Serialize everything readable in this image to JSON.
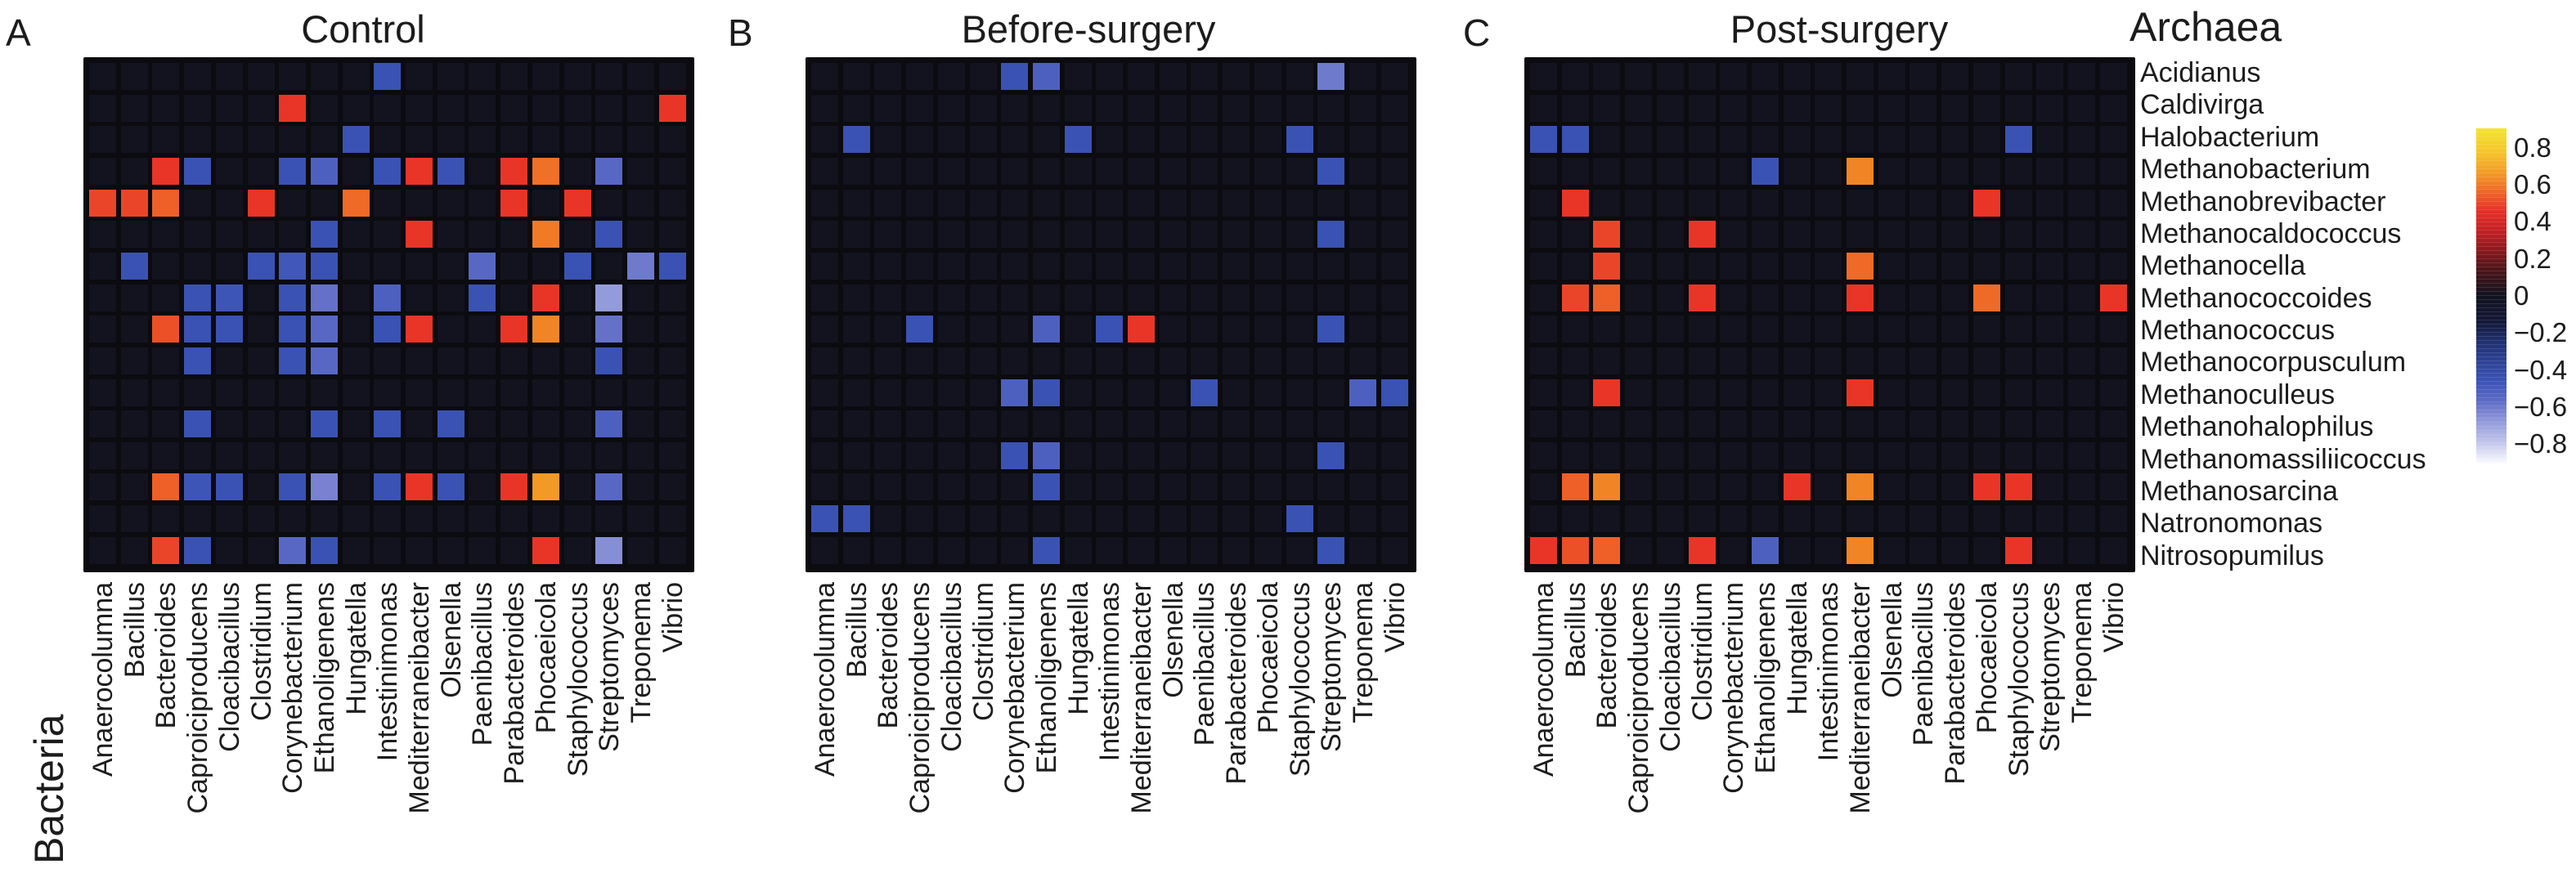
{
  "figure": {
    "panel_letters": [
      "A",
      "B",
      "C"
    ],
    "axis_label_right": "Archaea",
    "axis_label_bottom": "Bacteria"
  },
  "colorbar": {
    "tick_labels": [
      "0.8",
      "0.6",
      "0.4",
      "0.2",
      "0",
      "−0.2",
      "−0.4",
      "−0.6",
      "−0.8"
    ],
    "tick_values": [
      0.8,
      0.6,
      0.4,
      0.2,
      0,
      -0.2,
      -0.4,
      -0.6,
      -0.8
    ],
    "vmax": 0.905,
    "vmin": -0.905,
    "stops": [
      {
        "v": 0.905,
        "c": "#f2e434"
      },
      {
        "v": 0.78,
        "c": "#f6c62b"
      },
      {
        "v": 0.66,
        "c": "#f39a26"
      },
      {
        "v": 0.56,
        "c": "#ef6527"
      },
      {
        "v": 0.46,
        "c": "#e73028"
      },
      {
        "v": 0.35,
        "c": "#c32125"
      },
      {
        "v": 0.25,
        "c": "#8c1a1e"
      },
      {
        "v": 0.14,
        "c": "#4b151a"
      },
      {
        "v": 0.0,
        "c": "#12131f"
      },
      {
        "v": -0.14,
        "c": "#141938"
      },
      {
        "v": -0.25,
        "c": "#203070"
      },
      {
        "v": -0.36,
        "c": "#2f4497"
      },
      {
        "v": -0.46,
        "c": "#3b53b6"
      },
      {
        "v": -0.56,
        "c": "#5b69c5"
      },
      {
        "v": -0.66,
        "c": "#8b93d7"
      },
      {
        "v": -0.78,
        "c": "#bdc1e9"
      },
      {
        "v": -0.905,
        "c": "#fbfbfe"
      }
    ]
  },
  "chart_data": [
    {
      "type": "heatmap",
      "panel": "A",
      "title": "Control",
      "x_categories": [
        "Anaerocolumna",
        "Bacillus",
        "Bacteroides",
        "Caproiciproducens",
        "Cloacibacillus",
        "Clostridium",
        "Corynebacterium",
        "Ethanoligenens",
        "Hungatella",
        "Intestinimonas",
        "Mediterraneibacter",
        "Olsenella",
        "Paenibacillus",
        "Parabacteroides",
        "Phocaeicola",
        "Staphylococcus",
        "Streptomyces",
        "Treponema",
        "Vibrio"
      ],
      "y_categories": [
        "Acidianus",
        "Caldivirga",
        "Halobacterium",
        "Methanobacterium",
        "Methanobrevibacter",
        "Methanocaldococcus",
        "Methanocella",
        "Methanococcoides",
        "Methanococcus",
        "Methanocorpusculum",
        "Methanoculleus",
        "Methanohalophilus",
        "Methanomassiliicoccus",
        "Methanosarcina",
        "Natronomonas",
        "Nitrosopumilus"
      ],
      "value_range": [
        -0.9,
        0.9
      ],
      "default_value": 0,
      "cells": [
        [
          1,
          10,
          -0.45
        ],
        [
          2,
          7,
          0.47
        ],
        [
          2,
          19,
          0.47
        ],
        [
          3,
          9,
          -0.45
        ],
        [
          4,
          3,
          0.47
        ],
        [
          4,
          4,
          -0.45
        ],
        [
          4,
          7,
          -0.45
        ],
        [
          4,
          8,
          -0.52
        ],
        [
          4,
          10,
          -0.45
        ],
        [
          4,
          11,
          0.47
        ],
        [
          4,
          12,
          -0.45
        ],
        [
          4,
          14,
          0.47
        ],
        [
          4,
          15,
          0.58
        ],
        [
          4,
          17,
          -0.55
        ],
        [
          5,
          1,
          0.5
        ],
        [
          5,
          2,
          0.5
        ],
        [
          5,
          3,
          0.55
        ],
        [
          5,
          6,
          0.47
        ],
        [
          5,
          9,
          0.57
        ],
        [
          5,
          14,
          0.47
        ],
        [
          5,
          16,
          0.47
        ],
        [
          6,
          8,
          -0.45
        ],
        [
          6,
          11,
          0.47
        ],
        [
          6,
          15,
          0.6
        ],
        [
          6,
          17,
          -0.45
        ],
        [
          7,
          2,
          -0.45
        ],
        [
          7,
          6,
          -0.45
        ],
        [
          7,
          7,
          -0.48
        ],
        [
          7,
          8,
          -0.45
        ],
        [
          7,
          13,
          -0.55
        ],
        [
          7,
          16,
          -0.45
        ],
        [
          7,
          18,
          -0.6
        ],
        [
          7,
          19,
          -0.45
        ],
        [
          8,
          4,
          -0.45
        ],
        [
          8,
          5,
          -0.47
        ],
        [
          8,
          7,
          -0.45
        ],
        [
          8,
          8,
          -0.58
        ],
        [
          8,
          10,
          -0.52
        ],
        [
          8,
          13,
          -0.45
        ],
        [
          8,
          15,
          0.47
        ],
        [
          8,
          17,
          -0.68
        ],
        [
          9,
          3,
          0.52
        ],
        [
          9,
          4,
          -0.45
        ],
        [
          9,
          5,
          -0.45
        ],
        [
          9,
          7,
          -0.45
        ],
        [
          9,
          8,
          -0.55
        ],
        [
          9,
          10,
          -0.45
        ],
        [
          9,
          11,
          0.47
        ],
        [
          9,
          14,
          0.47
        ],
        [
          9,
          15,
          0.62
        ],
        [
          9,
          17,
          -0.58
        ],
        [
          10,
          4,
          -0.45
        ],
        [
          10,
          7,
          -0.45
        ],
        [
          10,
          8,
          -0.55
        ],
        [
          10,
          17,
          -0.45
        ],
        [
          12,
          4,
          -0.45
        ],
        [
          12,
          8,
          -0.45
        ],
        [
          12,
          10,
          -0.45
        ],
        [
          12,
          12,
          -0.45
        ],
        [
          12,
          17,
          -0.52
        ],
        [
          14,
          3,
          0.55
        ],
        [
          14,
          4,
          -0.47
        ],
        [
          14,
          5,
          -0.45
        ],
        [
          14,
          7,
          -0.45
        ],
        [
          14,
          8,
          -0.62
        ],
        [
          14,
          10,
          -0.45
        ],
        [
          14,
          11,
          0.47
        ],
        [
          14,
          12,
          -0.45
        ],
        [
          14,
          14,
          0.47
        ],
        [
          14,
          15,
          0.66
        ],
        [
          14,
          17,
          -0.55
        ],
        [
          16,
          3,
          0.5
        ],
        [
          16,
          4,
          -0.45
        ],
        [
          16,
          7,
          -0.55
        ],
        [
          16,
          8,
          -0.45
        ],
        [
          16,
          15,
          0.47
        ],
        [
          16,
          17,
          -0.65
        ]
      ]
    },
    {
      "type": "heatmap",
      "panel": "B",
      "title": "Before-surgery",
      "x_categories": [
        "Anaerocolumna",
        "Bacillus",
        "Bacteroides",
        "Caproiciproducens",
        "Cloacibacillus",
        "Clostridium",
        "Corynebacterium",
        "Ethanoligenens",
        "Hungatella",
        "Intestinimonas",
        "Mediterraneibacter",
        "Olsenella",
        "Paenibacillus",
        "Parabacteroides",
        "Phocaeicola",
        "Staphylococcus",
        "Streptomyces",
        "Treponema",
        "Vibrio"
      ],
      "y_categories": [
        "Acidianus",
        "Caldivirga",
        "Halobacterium",
        "Methanobacterium",
        "Methanobrevibacter",
        "Methanocaldococcus",
        "Methanocella",
        "Methanococcoides",
        "Methanococcus",
        "Methanocorpusculum",
        "Methanoculleus",
        "Methanohalophilus",
        "Methanomassiliicoccus",
        "Methanosarcina",
        "Natronomonas",
        "Nitrosopumilus"
      ],
      "value_range": [
        -0.9,
        0.9
      ],
      "default_value": 0,
      "cells": [
        [
          1,
          7,
          -0.45
        ],
        [
          1,
          8,
          -0.52
        ],
        [
          1,
          17,
          -0.6
        ],
        [
          3,
          2,
          -0.45
        ],
        [
          3,
          9,
          -0.45
        ],
        [
          3,
          16,
          -0.45
        ],
        [
          4,
          17,
          -0.45
        ],
        [
          6,
          17,
          -0.45
        ],
        [
          9,
          4,
          -0.45
        ],
        [
          9,
          8,
          -0.52
        ],
        [
          9,
          10,
          -0.45
        ],
        [
          9,
          11,
          0.47
        ],
        [
          9,
          17,
          -0.45
        ],
        [
          11,
          7,
          -0.52
        ],
        [
          11,
          8,
          -0.45
        ],
        [
          11,
          13,
          -0.45
        ],
        [
          11,
          18,
          -0.52
        ],
        [
          11,
          19,
          -0.45
        ],
        [
          13,
          7,
          -0.45
        ],
        [
          13,
          8,
          -0.52
        ],
        [
          13,
          17,
          -0.45
        ],
        [
          14,
          8,
          -0.45
        ],
        [
          15,
          1,
          -0.45
        ],
        [
          15,
          2,
          -0.45
        ],
        [
          15,
          16,
          -0.45
        ],
        [
          16,
          8,
          -0.45
        ],
        [
          16,
          17,
          -0.45
        ]
      ]
    },
    {
      "type": "heatmap",
      "panel": "C",
      "title": "Post-surgery",
      "x_categories": [
        "Anaerocolumna",
        "Bacillus",
        "Bacteroides",
        "Caproiciproducens",
        "Cloacibacillus",
        "Clostridium",
        "Corynebacterium",
        "Ethanoligenens",
        "Hungatella",
        "Intestinimonas",
        "Mediterraneibacter",
        "Olsenella",
        "Paenibacillus",
        "Parabacteroides",
        "Phocaeicola",
        "Staphylococcus",
        "Streptomyces",
        "Treponema",
        "Vibrio"
      ],
      "y_categories": [
        "Acidianus",
        "Caldivirga",
        "Halobacterium",
        "Methanobacterium",
        "Methanobrevibacter",
        "Methanocaldococcus",
        "Methanocella",
        "Methanococcoides",
        "Methanococcus",
        "Methanocorpusculum",
        "Methanoculleus",
        "Methanohalophilus",
        "Methanomassiliicoccus",
        "Methanosarcina",
        "Natronomonas",
        "Nitrosopumilus"
      ],
      "value_range": [
        -0.9,
        0.9
      ],
      "default_value": 0,
      "cells": [
        [
          3,
          1,
          -0.45
        ],
        [
          3,
          2,
          -0.45
        ],
        [
          3,
          16,
          -0.45
        ],
        [
          4,
          8,
          -0.45
        ],
        [
          4,
          11,
          0.62
        ],
        [
          5,
          2,
          0.47
        ],
        [
          5,
          15,
          0.47
        ],
        [
          6,
          3,
          0.5
        ],
        [
          6,
          6,
          0.47
        ],
        [
          7,
          3,
          0.5
        ],
        [
          7,
          11,
          0.57
        ],
        [
          8,
          2,
          0.5
        ],
        [
          8,
          3,
          0.55
        ],
        [
          8,
          6,
          0.47
        ],
        [
          8,
          11,
          0.47
        ],
        [
          8,
          15,
          0.57
        ],
        [
          8,
          19,
          0.47
        ],
        [
          11,
          3,
          0.47
        ],
        [
          11,
          11,
          0.47
        ],
        [
          14,
          2,
          0.55
        ],
        [
          14,
          3,
          0.62
        ],
        [
          14,
          9,
          0.47
        ],
        [
          14,
          11,
          0.62
        ],
        [
          14,
          15,
          0.47
        ],
        [
          14,
          16,
          0.47
        ],
        [
          16,
          1,
          0.47
        ],
        [
          16,
          2,
          0.52
        ],
        [
          16,
          3,
          0.55
        ],
        [
          16,
          6,
          0.47
        ],
        [
          16,
          8,
          -0.52
        ],
        [
          16,
          11,
          0.62
        ],
        [
          16,
          16,
          0.47
        ]
      ]
    }
  ]
}
